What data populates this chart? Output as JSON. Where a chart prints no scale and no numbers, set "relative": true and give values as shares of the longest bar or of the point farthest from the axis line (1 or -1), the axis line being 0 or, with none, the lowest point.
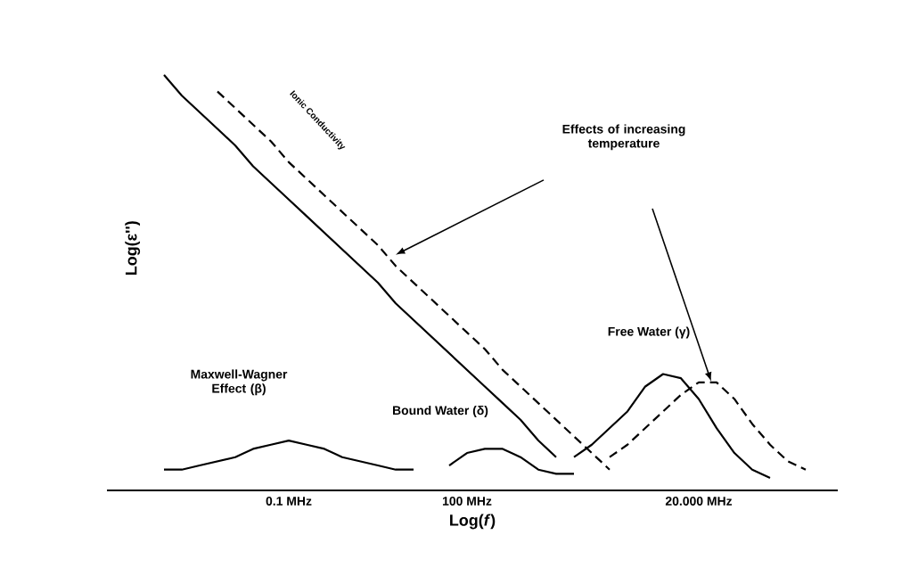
{
  "chart_data": {
    "type": "line",
    "relative": true,
    "xlabel": "Log(*f*)",
    "ylabel": "Log(ε'')",
    "categories": [
      null,
      null,
      null,
      null,
      null,
      null,
      null,
      "0.1 MHz",
      null,
      null,
      null,
      null,
      null,
      null,
      null,
      null,
      null,
      "100 MHz",
      null,
      null,
      null,
      null,
      null,
      null,
      null,
      null,
      null,
      null,
      null,
      null,
      "20.000 MHz",
      null,
      null,
      null,
      null,
      null,
      null,
      null
    ],
    "series": [
      {
        "color": "#000000",
        "line_style": "solid",
        "values": [
          1.0,
          0.95,
          0.91,
          0.87,
          0.83,
          0.78,
          0.74,
          0.7,
          0.66,
          0.62,
          0.58,
          0.54,
          0.5,
          0.45,
          0.41,
          0.37,
          0.33,
          0.29,
          0.25,
          0.21,
          0.17,
          0.12,
          0.08,
          null,
          null,
          null,
          null,
          null,
          null,
          null,
          null,
          null,
          null,
          null,
          null,
          null,
          null,
          null
        ]
      },
      {
        "color": "#000000",
        "line_style": "dashed",
        "values": [
          null,
          null,
          null,
          0.96,
          0.92,
          0.88,
          0.84,
          0.79,
          0.75,
          0.71,
          0.67,
          0.63,
          0.59,
          0.54,
          0.5,
          0.46,
          0.42,
          0.38,
          0.34,
          0.29,
          0.25,
          0.21,
          0.17,
          0.13,
          0.09,
          0.05,
          null,
          null,
          null,
          null,
          null,
          null,
          null,
          null,
          null,
          null,
          null,
          null
        ]
      },
      {
        "color": "#000000",
        "line_style": "solid",
        "values": [
          0.05,
          0.05,
          0.06,
          0.07,
          0.08,
          0.1,
          0.11,
          0.12,
          0.11,
          0.1,
          0.08,
          0.07,
          0.06,
          0.05,
          0.05,
          null,
          null,
          null,
          null,
          null,
          null,
          null,
          null,
          null,
          null,
          null,
          null,
          null,
          null,
          null,
          null,
          null,
          null,
          null,
          null,
          null,
          null,
          null
        ]
      },
      {
        "color": "#000000",
        "line_style": "solid",
        "values": [
          null,
          null,
          null,
          null,
          null,
          null,
          null,
          null,
          null,
          null,
          null,
          null,
          null,
          null,
          null,
          null,
          0.06,
          0.09,
          0.1,
          0.1,
          0.08,
          0.05,
          0.04,
          0.04,
          null,
          null,
          null,
          null,
          null,
          null,
          null,
          null,
          null,
          null,
          null,
          null,
          null,
          null
        ]
      },
      {
        "color": "#000000",
        "line_style": "solid",
        "values": [
          null,
          null,
          null,
          null,
          null,
          null,
          null,
          null,
          null,
          null,
          null,
          null,
          null,
          null,
          null,
          null,
          null,
          null,
          null,
          null,
          null,
          null,
          null,
          0.08,
          0.11,
          0.15,
          0.19,
          0.25,
          0.28,
          0.27,
          0.22,
          0.15,
          0.09,
          0.05,
          0.03,
          null,
          null,
          null
        ]
      },
      {
        "color": "#000000",
        "line_style": "dashed",
        "values": [
          null,
          null,
          null,
          null,
          null,
          null,
          null,
          null,
          null,
          null,
          null,
          null,
          null,
          null,
          null,
          null,
          null,
          null,
          null,
          null,
          null,
          null,
          null,
          null,
          null,
          0.08,
          0.11,
          0.15,
          0.19,
          0.23,
          0.26,
          0.26,
          0.22,
          0.16,
          0.11,
          0.07,
          0.05,
          null
        ]
      }
    ],
    "annotations": [
      "Ionic Conductivity",
      "Effects of increasing temperature",
      "Maxwell-Wagner Effect (β)",
      "Bound Water (δ)",
      "Free Water (γ)"
    ]
  }
}
